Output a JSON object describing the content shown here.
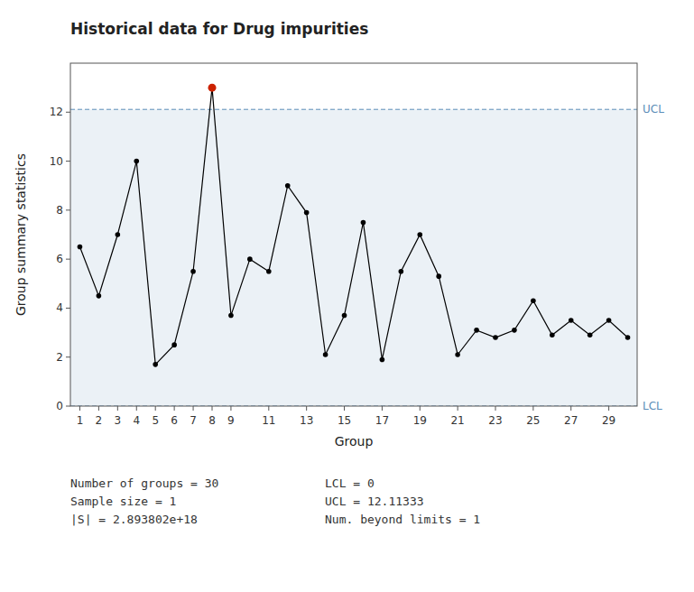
{
  "chart_data": {
    "type": "line",
    "title": "Historical data for Drug impurities",
    "x_label": "Group",
    "y_label": "Group summary statistics",
    "x": [
      1,
      2,
      3,
      4,
      5,
      6,
      7,
      8,
      9,
      10,
      11,
      12,
      13,
      14,
      15,
      16,
      17,
      18,
      19,
      20,
      21,
      22,
      23,
      24,
      25,
      26,
      27,
      28,
      29,
      30
    ],
    "values": [
      6.5,
      4.5,
      7.0,
      10.0,
      1.7,
      2.5,
      5.5,
      13.0,
      3.7,
      6.0,
      5.5,
      9.0,
      7.9,
      2.1,
      3.7,
      7.5,
      1.9,
      5.5,
      7.0,
      5.3,
      2.1,
      3.1,
      2.8,
      3.1,
      4.3,
      2.9,
      3.5,
      2.9,
      3.5,
      2.8
    ],
    "color": "#000000",
    "colors": [
      "#000000",
      "#000000",
      "#000000",
      "#000000",
      "#000000",
      "#000000",
      "#000000",
      "#cc2200",
      "#000000",
      "#000000",
      "#000000",
      "#000000",
      "#000000",
      "#000000",
      "#000000",
      "#000000",
      "#000000",
      "#000000",
      "#000000",
      "#000000",
      "#000000",
      "#000000",
      "#000000",
      "#000000",
      "#000000",
      "#000000",
      "#000000",
      "#000000",
      "#000000",
      "#000000"
    ],
    "marker": "circle",
    "line_style": "solid",
    "xlim": [
      0.5,
      30.5
    ],
    "xticks": [
      1,
      2,
      3,
      4,
      5,
      6,
      7,
      8,
      9,
      11,
      13,
      15,
      17,
      19,
      21,
      23,
      25,
      27,
      29
    ],
    "ylim": [
      0,
      14
    ],
    "yticks": [
      0,
      2,
      4,
      6,
      8,
      10,
      12
    ],
    "grid": false,
    "limits": [
      {
        "label": "UCL",
        "value": 12.11333,
        "color": "#5b8db8"
      },
      {
        "label": "LCL",
        "value": 0,
        "color": "#5b8db8"
      }
    ],
    "annotations": [
      {
        "lines": [
          "Number of groups = 30",
          "Sample size = 1",
          "|S| = 2.893802e+18"
        ]
      },
      {
        "lines": [
          "LCL = 0",
          "UCL = 12.11333",
          "Num. beyond limits = 1"
        ]
      }
    ]
  }
}
